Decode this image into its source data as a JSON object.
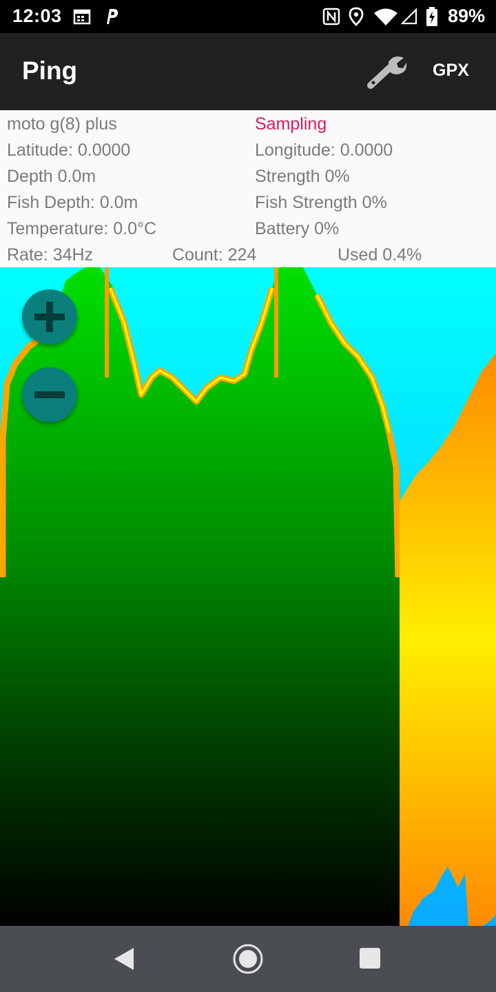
{
  "status_bar": {
    "time": "12:03",
    "battery_percent": "89%",
    "icons": [
      "calendar-icon",
      "parking-p-icon",
      "nfc-icon",
      "location-pin-icon",
      "wifi-icon",
      "signal-icon",
      "battery-charging-icon"
    ]
  },
  "app_bar": {
    "title": "Ping",
    "settings_icon": "wrench-icon",
    "gpx_label": "GPX"
  },
  "info": {
    "device": "moto g(8) plus",
    "status": "Sampling",
    "latitude": "Latitude: 0.0000",
    "longitude": "Longitude: 0.0000",
    "depth": "Depth 0.0m",
    "strength": "Strength 0%",
    "fish_depth": "Fish Depth: 0.0m",
    "fish_strength": "Fish Strength 0%",
    "temperature": "Temperature: 0.0°C",
    "battery": "Battery 0%",
    "rate": "Rate: 34Hz",
    "count": "Count: 224",
    "used": "Used 0.4%"
  },
  "sonar": {
    "colors": {
      "water_top": "#00ffff",
      "water_bottom": "#0aaaff",
      "bottom_return_top": "#00e000",
      "bottom_return_bottom": "#000000",
      "edge": "#ffaa00",
      "edge_highlight": "#ffff00",
      "strong_return": "#ff9000"
    },
    "zoom_in_icon": "plus-icon",
    "zoom_out_icon": "minus-icon"
  },
  "nav_bar": {
    "back_icon": "back-triangle-icon",
    "home_icon": "home-circle-icon",
    "recents_icon": "recents-square-icon"
  }
}
